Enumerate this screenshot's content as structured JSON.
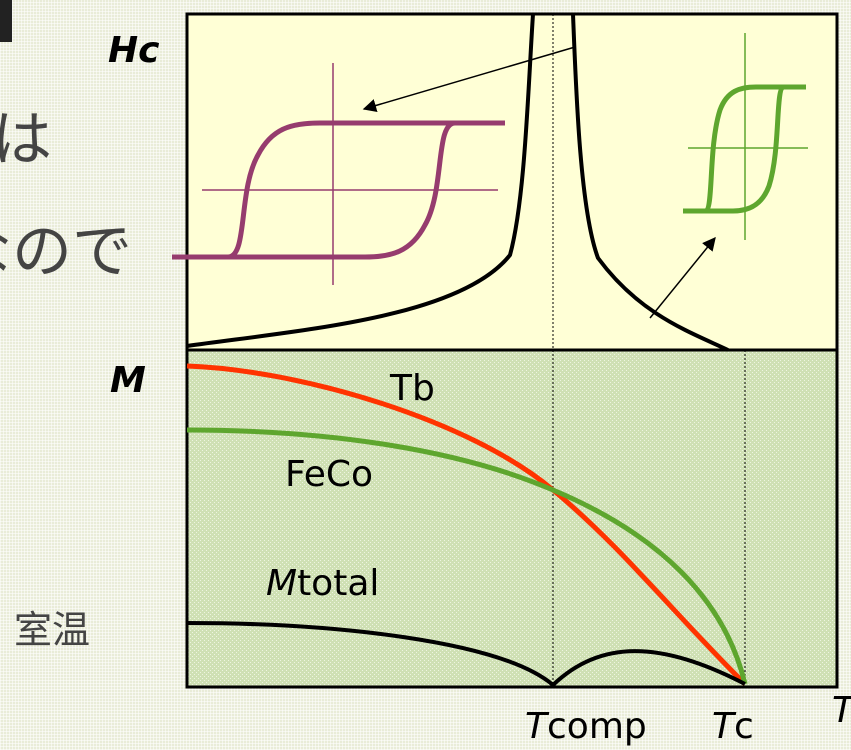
{
  "background_fragments": {
    "line1": "は",
    "line2": "なので",
    "room_temp": "室温"
  },
  "hc_panel": {
    "axis_label": "Hc"
  },
  "m_panel": {
    "axis_label": "M",
    "curve_labels": {
      "tb": "Tb",
      "feco": "FeCo",
      "mtotal_italic": "M",
      "mtotal_rest": "total"
    }
  },
  "x_axis": {
    "tcomp_italic": "T",
    "tcomp_rest": "comp",
    "tc_italic": "T",
    "tc_rest": "c",
    "end_label": "T"
  },
  "colors": {
    "tb_curve": "#ff3300",
    "feco_curve": "#5ea62e",
    "large_loop": "#963c6e",
    "small_loop": "#5ea62e",
    "hc_panel_fill": "#ffffd6",
    "m_panel_fill": "#cfe0b4"
  }
}
